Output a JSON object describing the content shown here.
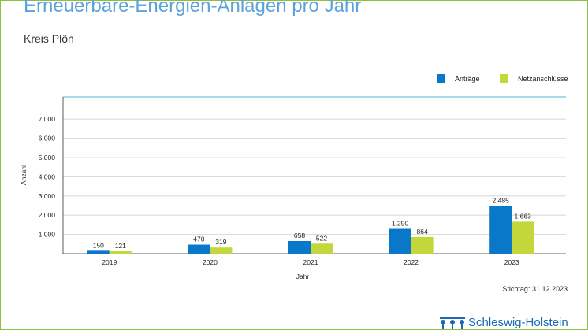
{
  "title": "Erneuerbare-Energien-Anlagen pro Jahr",
  "subtitle": "Kreis Plön",
  "stichtag": "Stichtag: 31.12.2023",
  "logo_text": "Schleswig-Holstein",
  "colors": {
    "antraege": "#0a78c8",
    "netz": "#c3d63a",
    "frame": "#8cbf3f",
    "rule": "#4fb7d6"
  },
  "chart_data": {
    "type": "bar",
    "title": "Erneuerbare-Energien-Anlagen pro Jahr",
    "subtitle": "Kreis Plön",
    "xlabel": "Jahr",
    "ylabel": "Anzahl",
    "categories": [
      "2019",
      "2020",
      "2021",
      "2022",
      "2023"
    ],
    "series": [
      {
        "name": "Anträge",
        "values": [
          150,
          470,
          658,
          1290,
          2485
        ],
        "labels": [
          "150",
          "470",
          "658",
          "1.290",
          "2.485"
        ]
      },
      {
        "name": "Netzanschlüsse",
        "values": [
          121,
          319,
          522,
          864,
          1663
        ],
        "labels": [
          "121",
          "319",
          "522",
          "864",
          "1.663"
        ]
      }
    ],
    "ylim": [
      0,
      8000
    ],
    "yticks": [
      1000,
      2000,
      3000,
      4000,
      5000,
      6000,
      7000
    ],
    "ytick_labels": [
      "1.000",
      "2.000",
      "3.000",
      "4.000",
      "5.000",
      "6.000",
      "7.000"
    ],
    "grid": true,
    "legend_position": "top-right"
  }
}
